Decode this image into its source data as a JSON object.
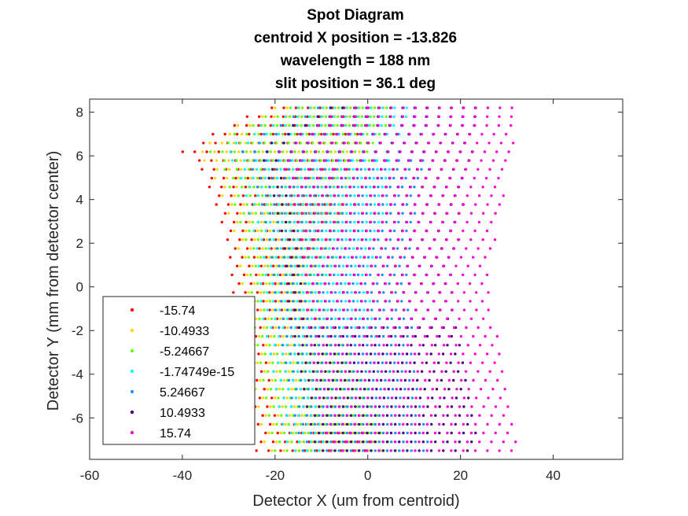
{
  "chart_data": {
    "type": "scatter",
    "title": [
      "Spot Diagram",
      "centroid X position = -13.826",
      "wavelength = 188 nm",
      "slit position = 36.1 deg"
    ],
    "xlabel": "Detector X (um from centroid)",
    "ylabel": "Detector Y (mm from detector center)",
    "xlim": [
      -60,
      55
    ],
    "ylim": [
      -7.9,
      8.6
    ],
    "xticks": [
      -60,
      -40,
      -20,
      0,
      20,
      40
    ],
    "yticks": [
      -6,
      -4,
      -2,
      0,
      2,
      4,
      6,
      8
    ],
    "xtick_labels": [
      "-60",
      "-40",
      "-20",
      "0",
      "20",
      "40"
    ],
    "ytick_labels": [
      "-6",
      "-4",
      "-2",
      "0",
      "2",
      "4",
      "6",
      "8"
    ],
    "grid": false,
    "legend_position": "bottom-left",
    "y_span": [
      -7.5,
      8.2
    ],
    "series": [
      {
        "name": "-15.74",
        "color": "#ff0000",
        "x_left_edge": [
          [
            -7.5,
            -24
          ],
          [
            -5.6,
            -25.5
          ],
          [
            -3,
            -27.5
          ],
          [
            -1,
            -29
          ],
          [
            0,
            -29
          ],
          [
            2,
            -30
          ],
          [
            4,
            -33
          ],
          [
            5.5,
            -36
          ],
          [
            6.2,
            -40
          ],
          [
            7.4,
            -30
          ],
          [
            8.2,
            -22
          ]
        ],
        "x_right_edge": [
          [
            -7.5,
            2
          ],
          [
            0,
            -16
          ],
          [
            8.2,
            2
          ]
        ]
      },
      {
        "name": "-10.4933",
        "color": "#ffd700",
        "x_left_edge": [
          [
            -7.5,
            -22
          ],
          [
            -5.6,
            -23.5
          ],
          [
            -3,
            -25.5
          ],
          [
            -1,
            -27
          ],
          [
            0,
            -27
          ],
          [
            2,
            -28
          ],
          [
            4,
            -31
          ],
          [
            5.5,
            -34
          ],
          [
            6.2,
            -37
          ],
          [
            7.4,
            -28
          ],
          [
            8.2,
            -20
          ]
        ],
        "x_right_edge": [
          [
            -7.5,
            4
          ],
          [
            0,
            -13
          ],
          [
            8.2,
            4
          ]
        ]
      },
      {
        "name": "-5.24667",
        "color": "#66ff00",
        "x_left_edge": [
          [
            -7.5,
            -20
          ],
          [
            -5.6,
            -21.5
          ],
          [
            -3,
            -23.5
          ],
          [
            -1,
            -25
          ],
          [
            0,
            -25
          ],
          [
            2,
            -26
          ],
          [
            4,
            -29
          ],
          [
            5.5,
            -31
          ],
          [
            6.2,
            -34
          ],
          [
            7.4,
            -26
          ],
          [
            8.2,
            -18
          ]
        ],
        "x_right_edge": [
          [
            -7.5,
            6
          ],
          [
            0,
            -10
          ],
          [
            8.2,
            6
          ]
        ]
      },
      {
        "name": "-1.74749e-15",
        "color": "#00ffff",
        "x_left_edge": [
          [
            -7.5,
            -17
          ],
          [
            -5.6,
            -19
          ],
          [
            -3,
            -21
          ],
          [
            -1,
            -23
          ],
          [
            0,
            -23
          ],
          [
            2,
            -24
          ],
          [
            4,
            -26
          ],
          [
            5.5,
            -28
          ],
          [
            6.2,
            -31
          ],
          [
            7.4,
            -23
          ],
          [
            8.2,
            -15
          ]
        ],
        "x_right_edge": [
          [
            -7.5,
            9
          ],
          [
            0,
            0
          ],
          [
            8.2,
            9
          ]
        ]
      },
      {
        "name": "5.24667",
        "color": "#1e90ff",
        "x_left_edge": [
          [
            -7.5,
            -14
          ],
          [
            -5.6,
            -16
          ],
          [
            -3,
            -18
          ],
          [
            -1,
            -20
          ],
          [
            0,
            -20
          ],
          [
            2,
            -21
          ],
          [
            4,
            -23
          ],
          [
            5.5,
            -25
          ],
          [
            6.2,
            -27
          ],
          [
            7.4,
            -20
          ],
          [
            8.2,
            -12
          ]
        ],
        "x_right_edge": [
          [
            -7.5,
            14
          ],
          [
            0,
            8
          ],
          [
            8.2,
            14
          ]
        ]
      },
      {
        "name": "10.4933",
        "color": "#4b0082",
        "x_left_edge": [
          [
            -7.5,
            -11
          ],
          [
            -5.6,
            -13
          ],
          [
            -3,
            -15
          ],
          [
            -1,
            -17
          ],
          [
            0,
            -17
          ],
          [
            2,
            -18
          ],
          [
            4,
            -20
          ],
          [
            5.5,
            -22
          ],
          [
            6.2,
            -23
          ],
          [
            7.4,
            -16
          ],
          [
            8.2,
            -8
          ]
        ],
        "x_right_edge": [
          [
            -7.5,
            24
          ],
          [
            0,
            18
          ],
          [
            8.2,
            24
          ]
        ]
      },
      {
        "name": "15.74",
        "color": "#ff00d4",
        "x_left_edge": [
          [
            -7.5,
            -8
          ],
          [
            -5.6,
            -10
          ],
          [
            -3,
            -12
          ],
          [
            -1,
            -13
          ],
          [
            0,
            -13
          ],
          [
            2,
            -14
          ],
          [
            4,
            -16
          ],
          [
            5.5,
            -18
          ],
          [
            6.2,
            -19
          ],
          [
            7.4,
            -12
          ],
          [
            8.2,
            -4
          ]
        ],
        "x_right_edge": [
          [
            -7.5,
            33
          ],
          [
            0,
            26
          ],
          [
            8.2,
            33
          ]
        ]
      }
    ]
  }
}
